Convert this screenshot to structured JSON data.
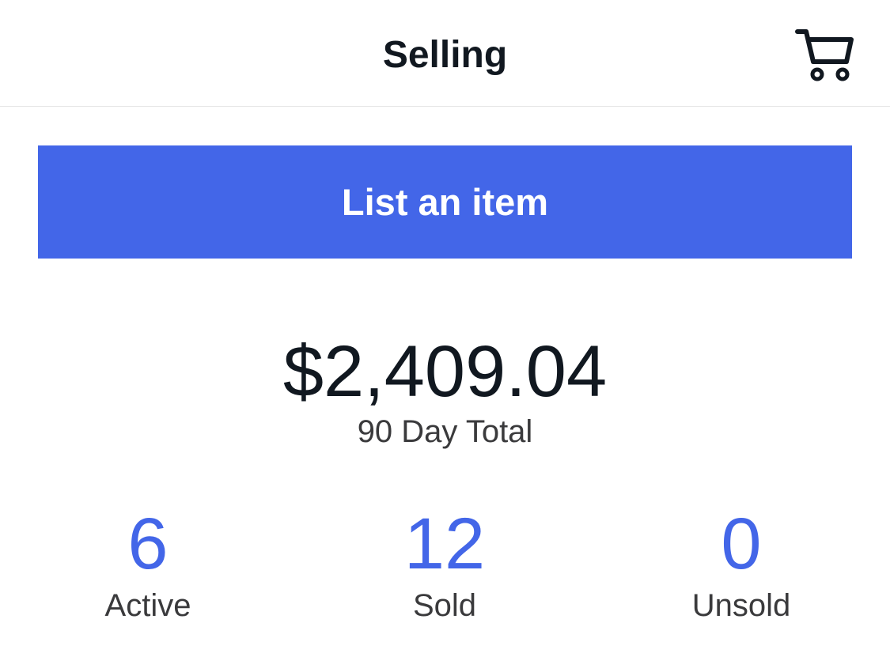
{
  "header": {
    "title": "Selling",
    "cart_icon": "shopping-cart-icon"
  },
  "actions": {
    "list_item_label": "List an item"
  },
  "summary": {
    "total_amount": "$2,409.04",
    "total_label": "90 Day Total"
  },
  "stats": {
    "active": {
      "value": "6",
      "label": "Active"
    },
    "sold": {
      "value": "12",
      "label": "Sold"
    },
    "unsold": {
      "value": "0",
      "label": "Unsold"
    }
  },
  "colors": {
    "accent": "#4366e8",
    "text_primary": "#111820",
    "text_secondary": "#3a3a3c",
    "divider": "#e5e5e5"
  }
}
